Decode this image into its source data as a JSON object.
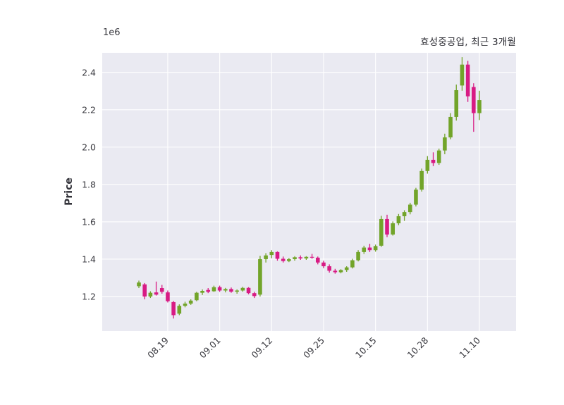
{
  "figure": {
    "title": "효성중공업, 최근 3개월",
    "ylabel": "Price",
    "offset_text": "1e6"
  },
  "colors": {
    "up": "#72a42a",
    "down": "#d81b84",
    "plot_bg": "#eaeaf2",
    "grid": "#ffffff",
    "text": "#3a3a40"
  },
  "chart_data": {
    "type": "candlestick",
    "title": "효성중공업, 최근 3개월",
    "xlabel": "",
    "ylabel": "Price",
    "offset_text": "1e6",
    "y_multiplier": 1000000,
    "ylim": [
      1.015,
      2.505
    ],
    "yticks": [
      1.2,
      1.4,
      1.6,
      1.8,
      2.0,
      2.2,
      2.4
    ],
    "grid": true,
    "xtick_labels": [
      "08.19",
      "09.01",
      "09.12",
      "09.25",
      "10.15",
      "10.28",
      "11.10"
    ],
    "xtick_indices": [
      5,
      14,
      23,
      32,
      41,
      50,
      59
    ],
    "dates": [
      "08.11",
      "08.12",
      "08.13",
      "08.14",
      "08.18",
      "08.19",
      "08.20",
      "08.21",
      "08.22",
      "08.25",
      "08.26",
      "08.27",
      "08.28",
      "08.29",
      "09.01",
      "09.02",
      "09.03",
      "09.04",
      "09.05",
      "09.08",
      "09.09",
      "09.10",
      "09.11",
      "09.12",
      "09.15",
      "09.16",
      "09.17",
      "09.18",
      "09.19",
      "09.22",
      "09.23",
      "09.24",
      "09.25",
      "09.26",
      "09.29",
      "09.30",
      "10.01",
      "10.02",
      "10.10",
      "10.13",
      "10.14",
      "10.15",
      "10.16",
      "10.17",
      "10.20",
      "10.21",
      "10.22",
      "10.23",
      "10.24",
      "10.27",
      "10.28",
      "10.29",
      "10.30",
      "10.31",
      "11.03",
      "11.04",
      "11.05",
      "11.06",
      "11.07",
      "11.10"
    ],
    "ohlc": [
      [
        1.255,
        1.285,
        1.245,
        1.275
      ],
      [
        1.265,
        1.272,
        1.185,
        1.2
      ],
      [
        1.2,
        1.228,
        1.192,
        1.22
      ],
      [
        1.222,
        1.28,
        1.205,
        1.21
      ],
      [
        1.245,
        1.262,
        1.215,
        1.225
      ],
      [
        1.222,
        1.232,
        1.168,
        1.175
      ],
      [
        1.17,
        1.176,
        1.082,
        1.1
      ],
      [
        1.108,
        1.158,
        1.1,
        1.15
      ],
      [
        1.15,
        1.172,
        1.142,
        1.162
      ],
      [
        1.162,
        1.185,
        1.155,
        1.178
      ],
      [
        1.18,
        1.225,
        1.175,
        1.22
      ],
      [
        1.22,
        1.238,
        1.208,
        1.23
      ],
      [
        1.235,
        1.245,
        1.218,
        1.225
      ],
      [
        1.228,
        1.258,
        1.225,
        1.25
      ],
      [
        1.25,
        1.258,
        1.225,
        1.232
      ],
      [
        1.232,
        1.246,
        1.222,
        1.24
      ],
      [
        1.24,
        1.248,
        1.22,
        1.226
      ],
      [
        1.226,
        1.238,
        1.215,
        1.232
      ],
      [
        1.232,
        1.252,
        1.226,
        1.246
      ],
      [
        1.246,
        1.25,
        1.212,
        1.218
      ],
      [
        1.218,
        1.225,
        1.192,
        1.202
      ],
      [
        1.21,
        1.418,
        1.2,
        1.4
      ],
      [
        1.4,
        1.432,
        1.382,
        1.42
      ],
      [
        1.422,
        1.448,
        1.405,
        1.438
      ],
      [
        1.438,
        1.442,
        1.392,
        1.402
      ],
      [
        1.402,
        1.414,
        1.382,
        1.39
      ],
      [
        1.39,
        1.406,
        1.384,
        1.4
      ],
      [
        1.4,
        1.416,
        1.392,
        1.41
      ],
      [
        1.41,
        1.42,
        1.396,
        1.404
      ],
      [
        1.404,
        1.416,
        1.396,
        1.412
      ],
      [
        1.412,
        1.428,
        1.402,
        1.408
      ],
      [
        1.408,
        1.414,
        1.372,
        1.382
      ],
      [
        1.382,
        1.392,
        1.352,
        1.362
      ],
      [
        1.362,
        1.372,
        1.328,
        1.338
      ],
      [
        1.338,
        1.348,
        1.322,
        1.33
      ],
      [
        1.33,
        1.346,
        1.324,
        1.342
      ],
      [
        1.342,
        1.362,
        1.332,
        1.356
      ],
      [
        1.356,
        1.402,
        1.35,
        1.394
      ],
      [
        1.394,
        1.448,
        1.388,
        1.438
      ],
      [
        1.438,
        1.472,
        1.428,
        1.462
      ],
      [
        1.462,
        1.482,
        1.438,
        1.448
      ],
      [
        1.448,
        1.478,
        1.44,
        1.47
      ],
      [
        1.472,
        1.632,
        1.466,
        1.615
      ],
      [
        1.615,
        1.638,
        1.518,
        1.532
      ],
      [
        1.532,
        1.602,
        1.526,
        1.592
      ],
      [
        1.592,
        1.642,
        1.582,
        1.63
      ],
      [
        1.63,
        1.662,
        1.605,
        1.652
      ],
      [
        1.652,
        1.702,
        1.64,
        1.692
      ],
      [
        1.692,
        1.782,
        1.682,
        1.772
      ],
      [
        1.772,
        1.885,
        1.762,
        1.872
      ],
      [
        1.872,
        1.952,
        1.858,
        1.932
      ],
      [
        1.932,
        1.972,
        1.898,
        1.915
      ],
      [
        1.915,
        1.992,
        1.905,
        1.982
      ],
      [
        1.982,
        2.072,
        1.962,
        2.052
      ],
      [
        2.052,
        2.182,
        2.042,
        2.162
      ],
      [
        2.162,
        2.335,
        2.142,
        2.305
      ],
      [
        2.33,
        2.482,
        2.302,
        2.442
      ],
      [
        2.442,
        2.462,
        2.242,
        2.272
      ],
      [
        2.322,
        2.342,
        2.082,
        2.182
      ],
      [
        2.182,
        2.302,
        2.145,
        2.252
      ]
    ]
  }
}
